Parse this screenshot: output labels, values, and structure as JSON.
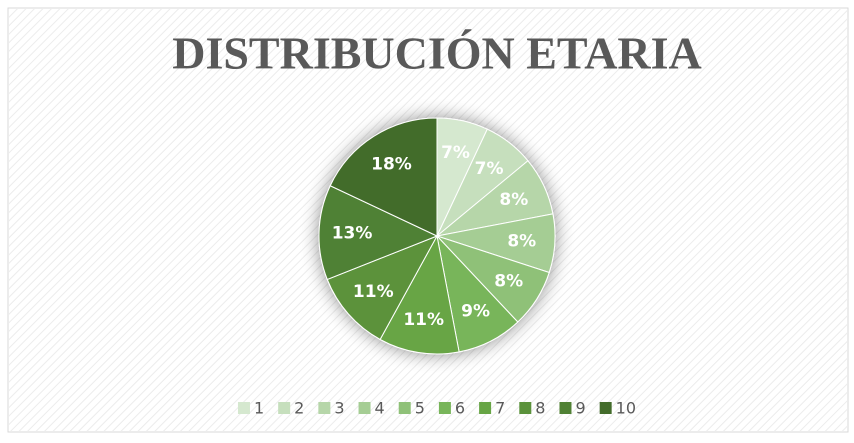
{
  "chart_data": {
    "type": "pie",
    "title": "DISTRIBUCIÓN ETARIA",
    "categories": [
      "1",
      "2",
      "3",
      "4",
      "5",
      "6",
      "7",
      "8",
      "9",
      "10"
    ],
    "values": [
      7,
      7,
      8,
      8,
      8,
      9,
      11,
      11,
      13,
      18
    ],
    "value_labels": [
      "7%",
      "7%",
      "8%",
      "8%",
      "8%",
      "9%",
      "11%",
      "11%",
      "13%",
      "18%"
    ],
    "colors": [
      "#d5e8cf",
      "#c6dfbd",
      "#b6d6a9",
      "#a5cd94",
      "#8fc178",
      "#78b55a",
      "#67a545",
      "#5b923b",
      "#508134",
      "#436c2b"
    ],
    "legend": "bottom"
  }
}
